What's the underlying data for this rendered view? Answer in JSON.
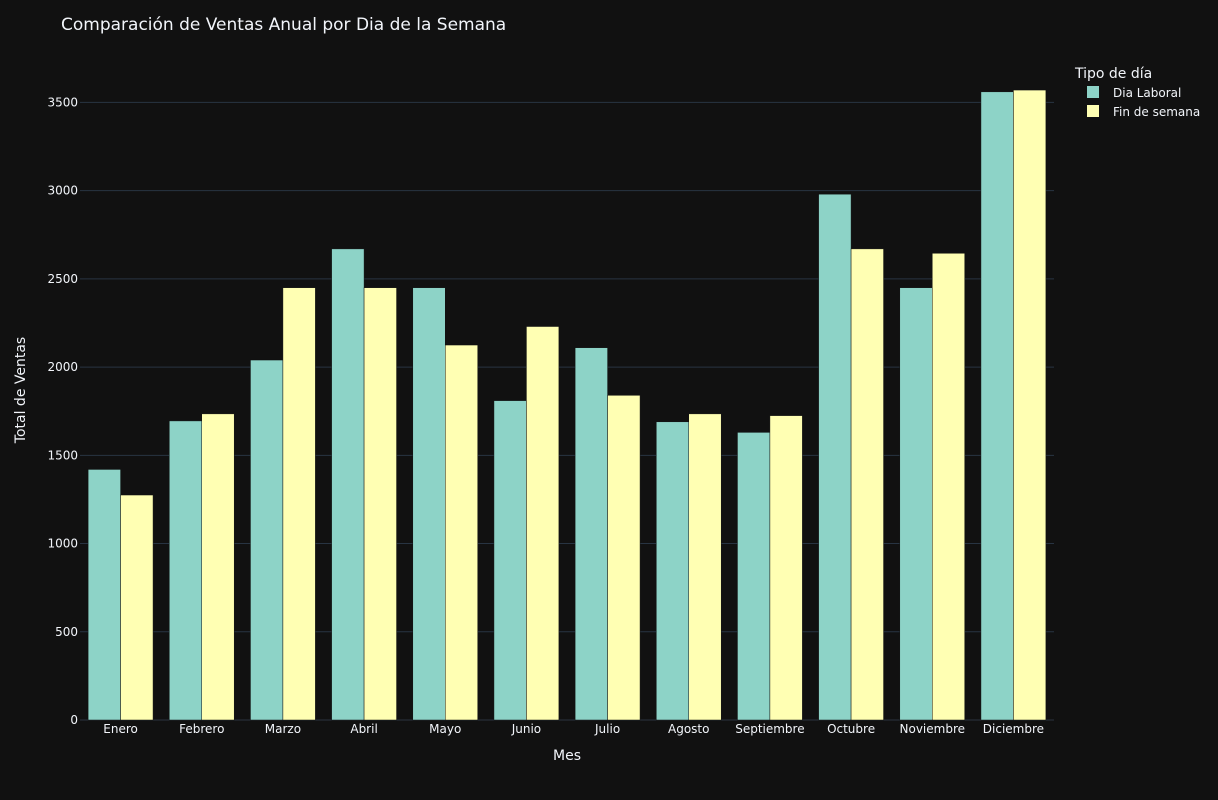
{
  "chart_data": {
    "type": "bar",
    "title": "Comparación de Ventas Anual por Dia de la Semana",
    "xlabel": "Mes",
    "ylabel": "Total de Ventas",
    "ylim": [
      0,
      3780
    ],
    "yticks": [
      0,
      500,
      1000,
      1500,
      2000,
      2500,
      3000,
      3500
    ],
    "grid": true,
    "legend_position": "top-right",
    "legend_title": "Tipo de día",
    "categories": [
      "Enero",
      "Febrero",
      "Marzo",
      "Abril",
      "Mayo",
      "Junio",
      "Julio",
      "Agosto",
      "Septiembre",
      "Octubre",
      "Noviembre",
      "Diciembre"
    ],
    "series": [
      {
        "name": "Dia Laboral",
        "color": "#8dd3c7",
        "values": [
          1420,
          1695,
          2040,
          2670,
          2450,
          1810,
          2110,
          1690,
          1630,
          2980,
          2450,
          3560
        ]
      },
      {
        "name": "Fin de semana",
        "color": "#ffffb3",
        "values": [
          1275,
          1735,
          2450,
          2450,
          2125,
          2230,
          1840,
          1735,
          1725,
          2670,
          2645,
          3570
        ]
      }
    ]
  },
  "colors": {
    "background": "#111111",
    "grid": "#283442",
    "text": "#f2f5fa"
  }
}
